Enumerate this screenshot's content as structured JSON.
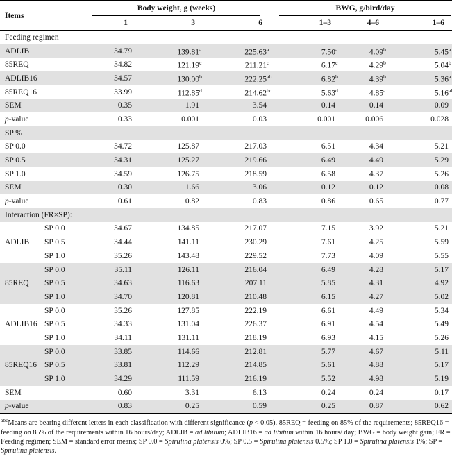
{
  "colors": {
    "stripe": "#e1e1e1",
    "rule": "#000000"
  },
  "table": {
    "items_header": "Items",
    "col_groups": [
      {
        "label": "Body weight, g (weeks)",
        "subs": [
          "1",
          "3",
          "6"
        ]
      },
      {
        "label": "BWG, g/bird/day",
        "subs": [
          "1–3",
          "4–6",
          "1–6"
        ]
      }
    ],
    "sections": [
      {
        "title": "Feeding regimen",
        "rows": [
          {
            "label": [
              {
                "t": "ADLIB"
              }
            ],
            "cells": [
              "34.79",
              {
                "v": "139.81",
                "s": "a"
              },
              {
                "v": "225.63",
                "s": "a"
              },
              {
                "v": "7.50",
                "s": "a"
              },
              {
                "v": "4.09",
                "s": "b"
              },
              {
                "v": "5.45",
                "s": "a"
              }
            ]
          },
          {
            "label": [
              {
                "t": "85REQ"
              }
            ],
            "cells": [
              "34.82",
              {
                "v": "121.19",
                "s": "c"
              },
              {
                "v": "211.21",
                "s": "c"
              },
              {
                "v": "6.17",
                "s": "c"
              },
              {
                "v": "4.29",
                "s": "b"
              },
              {
                "v": "5.04",
                "s": "b"
              }
            ]
          },
          {
            "label": [
              {
                "t": "ADLIB16"
              }
            ],
            "cells": [
              "34.57",
              {
                "v": "130.00",
                "s": "b"
              },
              {
                "v": "222.25",
                "s": "ab"
              },
              {
                "v": "6.82",
                "s": "b"
              },
              {
                "v": "4.39",
                "s": "b"
              },
              {
                "v": "5.36",
                "s": "a"
              }
            ]
          },
          {
            "label": [
              {
                "t": "85REQ16"
              }
            ],
            "cells": [
              "33.99",
              {
                "v": "112.85",
                "s": "d"
              },
              {
                "v": "214.62",
                "s": "bc"
              },
              {
                "v": "5.63",
                "s": "d"
              },
              {
                "v": "4.85",
                "s": "a"
              },
              {
                "v": "5.16",
                "s": "ab"
              }
            ]
          },
          {
            "label": [
              {
                "t": "SEM"
              }
            ],
            "cells": [
              "0.35",
              "1.91",
              "3.54",
              "0.14",
              "0.14",
              "0.09"
            ]
          },
          {
            "label": [
              {
                "t": "p",
                "i": true
              },
              {
                "t": "-value"
              }
            ],
            "cells": [
              "0.33",
              "0.001",
              "0.03",
              "0.001",
              "0.006",
              "0.028"
            ]
          }
        ]
      },
      {
        "title": "SP %",
        "rows": [
          {
            "label": [
              {
                "t": "SP 0.0"
              }
            ],
            "cells": [
              "34.72",
              "125.87",
              "217.03",
              "6.51",
              "4.34",
              "5.21"
            ]
          },
          {
            "label": [
              {
                "t": "SP 0.5"
              }
            ],
            "cells": [
              "34.31",
              "125.27",
              "219.66",
              "6.49",
              "4.49",
              "5.29"
            ]
          },
          {
            "label": [
              {
                "t": "SP 1.0"
              }
            ],
            "cells": [
              "34.59",
              "126.75",
              "218.59",
              "6.58",
              "4.37",
              "5.26"
            ]
          },
          {
            "label": [
              {
                "t": "SEM"
              }
            ],
            "cells": [
              "0.30",
              "1.66",
              "3.06",
              "0.12",
              "0.12",
              "0.08"
            ]
          },
          {
            "label": [
              {
                "t": "p",
                "i": true
              },
              {
                "t": "-value"
              }
            ],
            "cells": [
              "0.61",
              "0.82",
              "0.83",
              "0.86",
              "0.65",
              "0.77"
            ]
          }
        ]
      },
      {
        "title": "Interaction (FR×SP):",
        "groups": [
          {
            "name": "ADLIB",
            "rows": [
              {
                "label": "SP 0.0",
                "cells": [
                  "34.67",
                  "134.85",
                  "217.07",
                  "7.15",
                  "3.92",
                  "5.21"
                ]
              },
              {
                "label": "SP 0.5",
                "cells": [
                  "34.44",
                  "141.11",
                  "230.29",
                  "7.61",
                  "4.25",
                  "5.59"
                ]
              },
              {
                "label": "SP 1.0",
                "cells": [
                  "35.26",
                  "143.48",
                  "229.52",
                  "7.73",
                  "4.09",
                  "5.55"
                ]
              }
            ]
          },
          {
            "name": "85REQ",
            "rows": [
              {
                "label": "SP 0.0",
                "cells": [
                  "35.11",
                  "126.11",
                  "216.04",
                  "6.49",
                  "4.28",
                  "5.17"
                ]
              },
              {
                "label": "SP 0.5",
                "cells": [
                  "34.63",
                  "116.63",
                  "207.11",
                  "5.85",
                  "4.31",
                  "4.92"
                ]
              },
              {
                "label": "SP 1.0",
                "cells": [
                  "34.70",
                  "120.81",
                  "210.48",
                  "6.15",
                  "4.27",
                  "5.02"
                ]
              }
            ]
          },
          {
            "name": "ADLIB16",
            "rows": [
              {
                "label": "SP 0.0",
                "cells": [
                  "35.26",
                  "127.85",
                  "222.19",
                  "6.61",
                  "4.49",
                  "5.34"
                ]
              },
              {
                "label": "SP 0.5",
                "cells": [
                  "34.33",
                  "131.04",
                  "226.37",
                  "6.91",
                  "4.54",
                  "5.49"
                ]
              },
              {
                "label": "SP 1.0",
                "cells": [
                  "34.11",
                  "131.11",
                  "218.19",
                  "6.93",
                  "4.15",
                  "5.26"
                ]
              }
            ]
          },
          {
            "name": "85REQ16",
            "rows": [
              {
                "label": "SP 0.0",
                "cells": [
                  "33.85",
                  "114.66",
                  "212.81",
                  "5.77",
                  "4.67",
                  "5.11"
                ]
              },
              {
                "label": "SP 0.5",
                "cells": [
                  "33.81",
                  "112.29",
                  "214.85",
                  "5.61",
                  "4.88",
                  "5.17"
                ]
              },
              {
                "label": "SP 1.0",
                "cells": [
                  "34.29",
                  "111.59",
                  "216.19",
                  "5.52",
                  "4.98",
                  "5.19"
                ]
              }
            ]
          }
        ],
        "rows": [
          {
            "label": [
              {
                "t": "SEM"
              }
            ],
            "cells": [
              "0.60",
              "3.31",
              "6.13",
              "0.24",
              "0.24",
              "0.17"
            ]
          },
          {
            "label": [
              {
                "t": "p",
                "i": true
              },
              {
                "t": "-value"
              }
            ],
            "cells": [
              "0.83",
              "0.25",
              "0.59",
              "0.25",
              "0.87",
              "0.62"
            ]
          }
        ]
      }
    ],
    "footnote": [
      {
        "t": "abc",
        "sup": true
      },
      {
        "t": "Means are bearing different letters in each classification with different significance ("
      },
      {
        "t": "p",
        "i": true
      },
      {
        "t": " < 0.05). 85REQ = feeding on 85% of the requirements; 85REQ16 = feeding on 85% of the requirements within 16 hours/day; ADLIB = "
      },
      {
        "t": "ad libitum",
        "i": true
      },
      {
        "t": "; ADLIB16 = "
      },
      {
        "t": "ad libitum",
        "i": true
      },
      {
        "t": " within 16 hours/ day; BWG = body weight gain; FR = Feeding regimen; SEM = standard error means; SP 0.0 = "
      },
      {
        "t": "Spirulina platensis",
        "i": true
      },
      {
        "t": " 0%; SP 0.5 = "
      },
      {
        "t": "Spirulina platensis",
        "i": true
      },
      {
        "t": " 0.5%; SP 1.0 = "
      },
      {
        "t": "Spirulina platensis",
        "i": true
      },
      {
        "t": " 1%; SP = "
      },
      {
        "t": "Spirulina platensis",
        "i": true
      },
      {
        "t": "."
      }
    ]
  }
}
